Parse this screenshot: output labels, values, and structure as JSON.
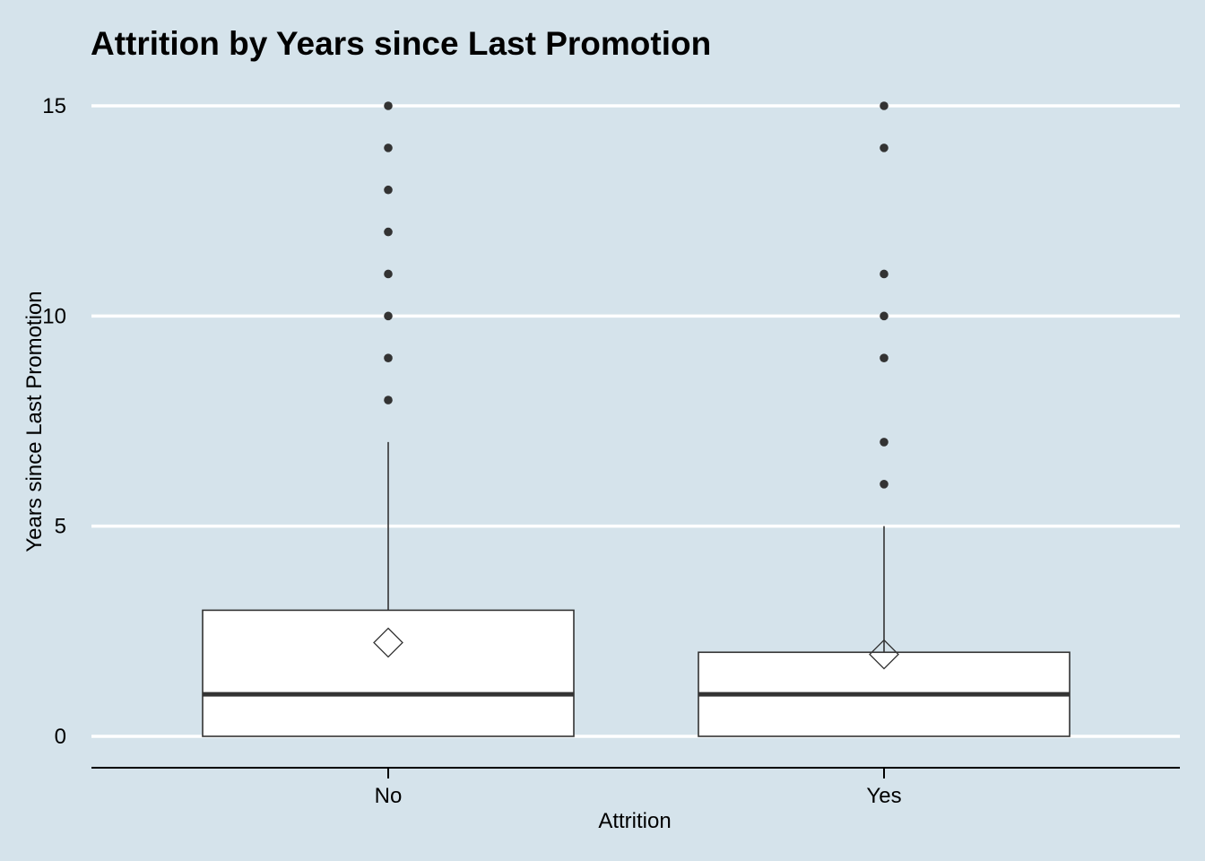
{
  "chart_data": {
    "type": "boxplot",
    "title": "Attrition by Years since Last Promotion",
    "xlabel": "Attrition",
    "ylabel": "Years since Last Promotion",
    "categories": [
      "No",
      "Yes"
    ],
    "ylim": [
      -0.75,
      15.3
    ],
    "yticks": [
      0,
      5,
      10,
      15
    ],
    "grid": "horizontal major",
    "boxes": [
      {
        "category": "No",
        "q1": 0,
        "median": 1,
        "q3": 3,
        "whisker_low": 0,
        "whisker_high": 7,
        "mean": 2.23,
        "outliers": [
          8,
          9,
          10,
          11,
          12,
          13,
          14,
          15
        ]
      },
      {
        "category": "Yes",
        "q1": 0,
        "median": 1,
        "q3": 2,
        "whisker_low": 0,
        "whisker_high": 5,
        "mean": 1.95,
        "outliers": [
          6,
          7,
          9,
          10,
          11,
          14,
          15
        ]
      }
    ]
  },
  "colors": {
    "background": "#d5e3eb",
    "gridline": "#ffffff",
    "box_fill": "#ffffff",
    "box_stroke": "#333333",
    "median_line": "#333333",
    "outlier_point": "#333333",
    "mean_marker_stroke": "#333333",
    "axis_line": "#000000",
    "text": "#000000"
  }
}
